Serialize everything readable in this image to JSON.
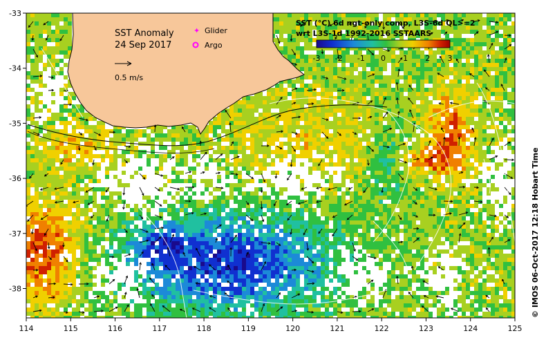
{
  "map": {
    "title": "SST Anomaly",
    "date": "24 Sep 2017",
    "scale_arrow_label": "0.5 m/s",
    "legend": {
      "glider": "Glider",
      "argo": "Argo",
      "glider_color": "#ff00ff",
      "argo_color": "#ff00ff"
    },
    "colorbar": {
      "title_line1": "SST (°C) 6d ngt-only comp, L3S-6d QL>=2",
      "title_line2": "wrt L3S-1d 1992-2016 SSTAARS",
      "ticks": [
        "-3",
        "-2",
        "-1",
        "0",
        "1",
        "2",
        "3"
      ],
      "colors": [
        "#1a0a8c",
        "#1030d0",
        "#1c8ad8",
        "#20c0a0",
        "#30c040",
        "#a8d020",
        "#f0d000",
        "#f08000",
        "#d02000",
        "#a00000"
      ]
    },
    "land_color": "#f7c79a",
    "credit": "© IMOS 06-Oct-2017 12:18 Hobart Time",
    "lon_ticks": [
      "114",
      "115",
      "116",
      "117",
      "118",
      "119",
      "120",
      "121",
      "122",
      "123",
      "124",
      "125"
    ],
    "lat_ticks": [
      "-33",
      "-34",
      "-35",
      "-36",
      "-37",
      "-38"
    ]
  }
}
